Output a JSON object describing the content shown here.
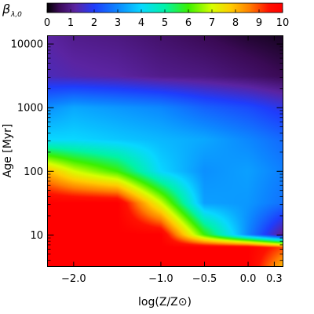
{
  "chart_data": {
    "type": "heatmap",
    "xlabel": "log(Z/Z⊙)",
    "ylabel": "Age [Myr]",
    "y_scale": "log",
    "xlim": [
      -2.3,
      0.4
    ],
    "ylim": [
      3.2,
      13500
    ],
    "x_ticks": [
      {
        "value": -2.0,
        "label": "−2.0"
      },
      {
        "value": -1.0,
        "label": "−1.0"
      },
      {
        "value": -0.5,
        "label": "−0.5"
      },
      {
        "value": 0.0,
        "label": "0.0"
      },
      {
        "value": 0.3,
        "label": "0.3"
      }
    ],
    "y_ticks": [
      {
        "value": 10,
        "label": "10"
      },
      {
        "value": 100,
        "label": "100"
      },
      {
        "value": 1000,
        "label": "1000"
      },
      {
        "value": 10000,
        "label": "10000"
      }
    ],
    "colorbar": {
      "label_symbol": "β",
      "label_subscript": "λ,0",
      "range": [
        0,
        10
      ],
      "ticks": [
        "0",
        "1",
        "2",
        "3",
        "4",
        "5",
        "6",
        "7",
        "8",
        "9",
        "10"
      ],
      "colormap": "rainbow (black → purple → blue → cyan → green → yellow → orange → red)"
    },
    "field_description": {
      "x": [
        -2.3,
        -2.0,
        -1.5,
        -1.0,
        -0.5,
        0.0,
        0.4
      ],
      "log10_age": [
        0.5,
        0.8,
        1.0,
        1.5,
        2.0,
        2.5,
        3.0,
        3.5,
        4.13
      ],
      "values": [
        [
          10,
          10,
          10,
          10,
          10,
          10,
          8
        ],
        [
          10,
          10,
          10,
          10,
          10,
          10,
          9
        ],
        [
          10,
          10,
          10,
          10,
          6,
          3,
          1
        ],
        [
          10,
          10,
          10,
          7,
          3.3,
          3.2,
          2.7
        ],
        [
          8,
          7,
          6,
          4,
          3.1,
          3.3,
          2.9
        ],
        [
          4,
          4,
          3.8,
          3.6,
          3.4,
          3.0,
          2.6
        ],
        [
          3.1,
          3.4,
          3.2,
          3.0,
          2.5,
          2.2,
          1.8
        ],
        [
          1.4,
          1.3,
          1.2,
          1.0,
          0.9,
          0.7,
          0.5
        ],
        [
          1.2,
          1.0,
          0.9,
          0.7,
          0.5,
          0.3,
          0.2
        ]
      ]
    }
  }
}
